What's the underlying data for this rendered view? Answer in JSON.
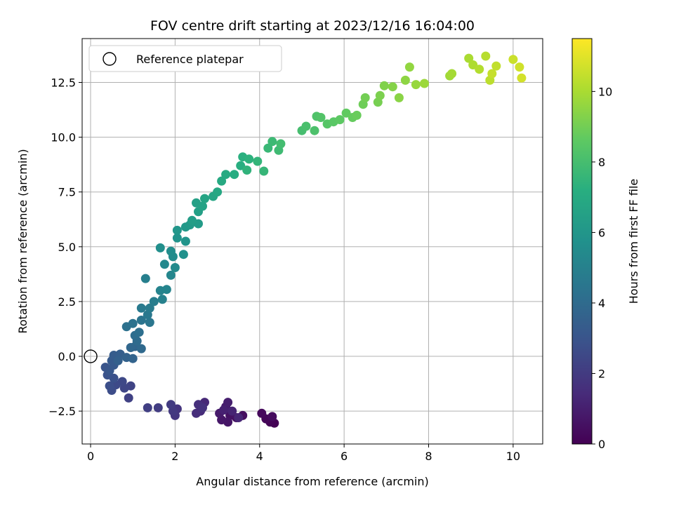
{
  "chart_data": {
    "type": "scatter",
    "title": "FOV centre drift starting at 2023/12/16 16:04:00",
    "xlabel": "Angular distance from reference (arcmin)",
    "ylabel": "Rotation from reference (arcmin)",
    "xlim": [
      -0.2,
      10.7
    ],
    "ylim": [
      -4.0,
      14.5
    ],
    "xticks": [
      0,
      2,
      4,
      6,
      8,
      10
    ],
    "yticks": [
      -2.5,
      0.0,
      2.5,
      5.0,
      7.5,
      10.0,
      12.5
    ],
    "xtick_labels": [
      "0",
      "2",
      "4",
      "6",
      "8",
      "10"
    ],
    "ytick_labels": [
      "−2.5",
      "0.0",
      "2.5",
      "5.0",
      "7.5",
      "10.0",
      "12.5"
    ],
    "grid": true,
    "legend": {
      "placement": "top-left",
      "entries": [
        "Reference platepar"
      ]
    },
    "reference_point": {
      "x": 0.0,
      "y": 0.0
    },
    "colorbar": {
      "label": "Hours from first FF file",
      "colormap": "viridis",
      "range": [
        0,
        11.5
      ],
      "ticks": [
        0,
        2,
        4,
        6,
        8,
        10
      ],
      "tick_labels": [
        "0",
        "2",
        "4",
        "6",
        "8",
        "10"
      ]
    },
    "points": [
      [
        4.35,
        -3.05,
        0.0
      ],
      [
        4.25,
        -3.0,
        0.08
      ],
      [
        4.15,
        -2.85,
        0.17
      ],
      [
        4.05,
        -2.6,
        0.25
      ],
      [
        4.3,
        -2.75,
        0.33
      ],
      [
        3.6,
        -2.7,
        0.42
      ],
      [
        3.45,
        -2.8,
        0.5
      ],
      [
        3.3,
        -2.7,
        0.58
      ],
      [
        3.25,
        -3.0,
        0.67
      ],
      [
        3.1,
        -2.9,
        0.75
      ],
      [
        3.05,
        -2.6,
        0.83
      ],
      [
        3.2,
        -2.3,
        0.92
      ],
      [
        3.25,
        -2.1,
        1.0
      ],
      [
        3.15,
        -2.45,
        1.08
      ],
      [
        3.35,
        -2.5,
        1.17
      ],
      [
        3.5,
        -2.8,
        1.25
      ],
      [
        2.7,
        -2.1,
        1.33
      ],
      [
        2.6,
        -2.5,
        1.42
      ],
      [
        2.5,
        -2.6,
        1.5
      ],
      [
        2.55,
        -2.2,
        1.58
      ],
      [
        2.65,
        -2.35,
        1.67
      ],
      [
        2.05,
        -2.4,
        1.75
      ],
      [
        2.0,
        -2.7,
        1.83
      ],
      [
        1.95,
        -2.5,
        1.92
      ],
      [
        1.9,
        -2.2,
        2.0
      ],
      [
        1.6,
        -2.35,
        2.08
      ],
      [
        1.35,
        -2.35,
        2.17
      ],
      [
        0.9,
        -1.9,
        2.25
      ],
      [
        0.95,
        -1.35,
        2.33
      ],
      [
        0.8,
        -1.45,
        2.42
      ],
      [
        0.75,
        -1.15,
        2.5
      ],
      [
        0.6,
        -1.3,
        2.58
      ],
      [
        0.5,
        -1.55,
        2.67
      ],
      [
        0.45,
        -1.35,
        2.75
      ],
      [
        0.55,
        -1.0,
        2.83
      ],
      [
        0.4,
        -0.85,
        2.92
      ],
      [
        0.35,
        -0.5,
        3.0
      ],
      [
        0.45,
        -0.65,
        3.08
      ],
      [
        0.55,
        -0.4,
        3.17
      ],
      [
        0.5,
        -0.2,
        3.25
      ],
      [
        0.55,
        0.05,
        3.33
      ],
      [
        0.7,
        0.1,
        3.42
      ],
      [
        0.65,
        -0.2,
        3.5
      ],
      [
        0.85,
        -0.05,
        3.58
      ],
      [
        1.0,
        -0.1,
        3.67
      ],
      [
        1.05,
        0.45,
        3.75
      ],
      [
        0.95,
        0.4,
        3.83
      ],
      [
        1.2,
        0.35,
        3.92
      ],
      [
        1.1,
        0.7,
        4.0
      ],
      [
        1.05,
        0.95,
        4.08
      ],
      [
        1.15,
        1.1,
        4.17
      ],
      [
        0.85,
        1.35,
        4.25
      ],
      [
        1.0,
        1.5,
        4.33
      ],
      [
        1.2,
        1.65,
        4.42
      ],
      [
        1.4,
        1.55,
        4.5
      ],
      [
        1.35,
        1.9,
        4.58
      ],
      [
        1.2,
        2.2,
        4.67
      ],
      [
        1.4,
        2.2,
        4.75
      ],
      [
        1.5,
        2.5,
        4.83
      ],
      [
        1.3,
        3.55,
        4.92
      ],
      [
        1.7,
        2.6,
        5.0
      ],
      [
        1.65,
        3.0,
        5.08
      ],
      [
        1.8,
        3.05,
        5.17
      ],
      [
        1.9,
        3.7,
        5.25
      ],
      [
        1.75,
        4.2,
        5.33
      ],
      [
        2.0,
        4.05,
        5.42
      ],
      [
        1.95,
        4.55,
        5.5
      ],
      [
        1.9,
        4.8,
        5.58
      ],
      [
        1.65,
        4.95,
        5.67
      ],
      [
        2.2,
        4.65,
        5.75
      ],
      [
        2.05,
        5.4,
        5.83
      ],
      [
        2.25,
        5.25,
        5.92
      ],
      [
        2.05,
        5.75,
        6.0
      ],
      [
        2.25,
        5.9,
        6.08
      ],
      [
        2.35,
        6.0,
        6.17
      ],
      [
        2.55,
        6.05,
        6.25
      ],
      [
        2.4,
        6.2,
        6.33
      ],
      [
        2.55,
        6.6,
        6.42
      ],
      [
        2.5,
        7.0,
        6.5
      ],
      [
        2.65,
        6.85,
        6.58
      ],
      [
        2.7,
        7.2,
        6.67
      ],
      [
        2.9,
        7.3,
        6.75
      ],
      [
        3.0,
        7.5,
        6.83
      ],
      [
        3.1,
        8.0,
        6.92
      ],
      [
        3.2,
        8.3,
        7.0
      ],
      [
        3.4,
        8.3,
        7.08
      ],
      [
        3.55,
        8.7,
        7.17
      ],
      [
        3.6,
        9.1,
        7.25
      ],
      [
        3.75,
        9.0,
        7.33
      ],
      [
        3.7,
        8.5,
        7.42
      ],
      [
        3.95,
        8.9,
        7.5
      ],
      [
        4.1,
        8.45,
        7.58
      ],
      [
        4.2,
        9.5,
        7.67
      ],
      [
        4.3,
        9.8,
        7.75
      ],
      [
        4.45,
        9.4,
        7.83
      ],
      [
        4.5,
        9.7,
        7.92
      ],
      [
        5.0,
        10.3,
        8.0
      ],
      [
        5.1,
        10.5,
        8.08
      ],
      [
        5.3,
        10.3,
        8.17
      ],
      [
        5.35,
        10.95,
        8.25
      ],
      [
        5.45,
        10.9,
        8.33
      ],
      [
        5.6,
        10.6,
        8.42
      ],
      [
        5.75,
        10.7,
        8.5
      ],
      [
        5.9,
        10.8,
        8.58
      ],
      [
        6.05,
        11.1,
        8.67
      ],
      [
        6.2,
        10.9,
        8.75
      ],
      [
        6.3,
        11.0,
        8.83
      ],
      [
        6.45,
        11.5,
        8.92
      ],
      [
        6.5,
        11.8,
        9.0
      ],
      [
        6.8,
        11.6,
        9.08
      ],
      [
        6.85,
        11.9,
        9.17
      ],
      [
        6.95,
        12.35,
        9.25
      ],
      [
        7.15,
        12.3,
        9.33
      ],
      [
        7.3,
        11.8,
        9.42
      ],
      [
        7.45,
        12.6,
        9.5
      ],
      [
        7.55,
        13.2,
        9.58
      ],
      [
        7.7,
        12.4,
        9.67
      ],
      [
        7.9,
        12.45,
        9.75
      ],
      [
        8.5,
        12.8,
        9.83
      ],
      [
        8.55,
        12.9,
        9.92
      ],
      [
        8.95,
        13.6,
        10.0
      ],
      [
        9.05,
        13.3,
        10.08
      ],
      [
        9.2,
        13.1,
        10.17
      ],
      [
        9.35,
        13.7,
        10.25
      ],
      [
        9.45,
        12.6,
        10.33
      ],
      [
        9.6,
        13.25,
        10.42
      ],
      [
        9.5,
        12.9,
        10.5
      ],
      [
        10.0,
        13.55,
        10.58
      ],
      [
        10.15,
        13.2,
        10.67
      ],
      [
        10.2,
        12.7,
        10.75
      ]
    ]
  }
}
